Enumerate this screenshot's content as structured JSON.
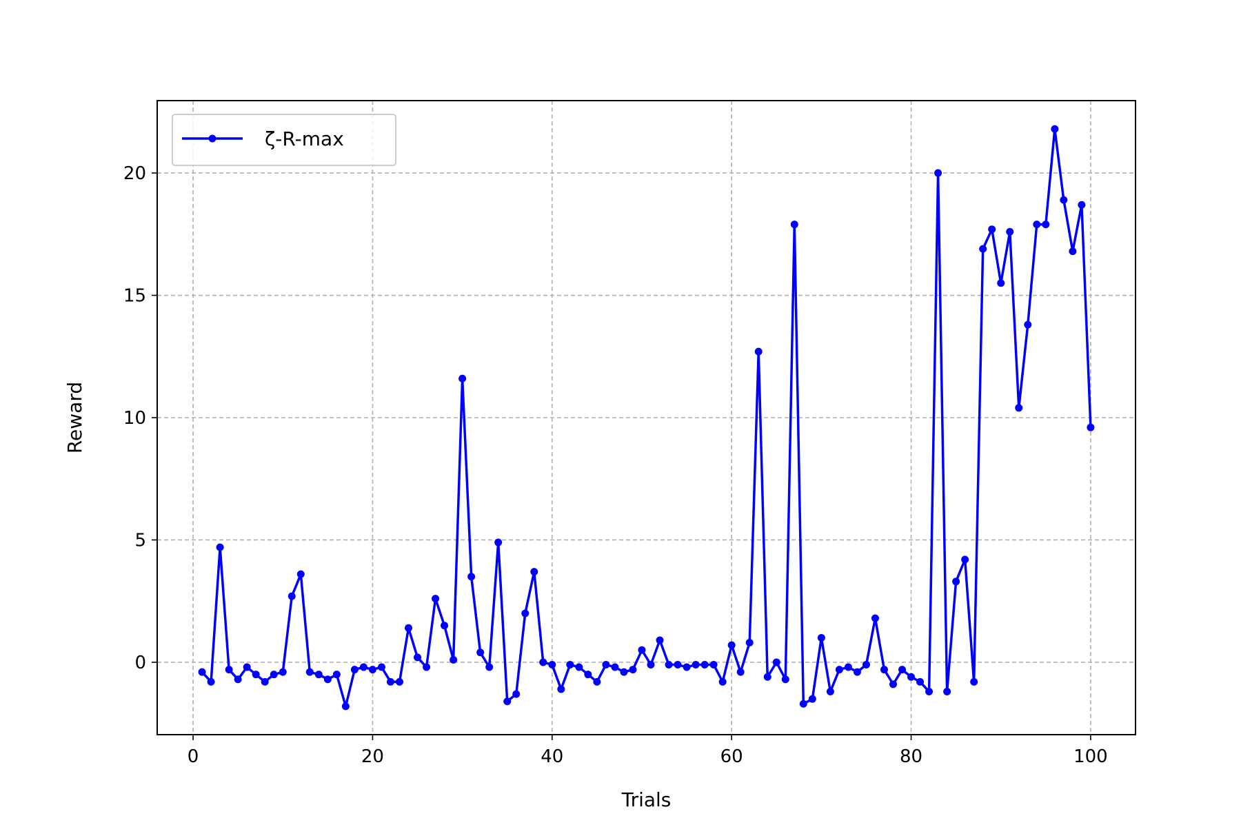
{
  "chart_data": {
    "type": "line",
    "title": "",
    "xlabel": "Trials",
    "ylabel": "Reward",
    "xlim": [
      -4,
      105
    ],
    "ylim": [
      -2.96,
      22.96
    ],
    "xticks": [
      0,
      20,
      40,
      60,
      80,
      100
    ],
    "yticks": [
      0,
      5,
      10,
      15,
      20
    ],
    "grid": true,
    "legend": "upper left",
    "series": [
      {
        "name": "ζ-R-max",
        "color": "#0000ff",
        "marker": "circle",
        "x": [
          1,
          2,
          3,
          4,
          5,
          6,
          7,
          8,
          9,
          10,
          11,
          12,
          13,
          14,
          15,
          16,
          17,
          18,
          19,
          20,
          21,
          22,
          23,
          24,
          25,
          26,
          27,
          28,
          29,
          30,
          31,
          32,
          33,
          34,
          35,
          36,
          37,
          38,
          39,
          40,
          41,
          42,
          43,
          44,
          45,
          46,
          47,
          48,
          49,
          50,
          51,
          52,
          53,
          54,
          55,
          56,
          57,
          58,
          59,
          60,
          61,
          62,
          63,
          64,
          65,
          66,
          67,
          68,
          69,
          70,
          71,
          72,
          73,
          74,
          75,
          76,
          77,
          78,
          79,
          80,
          81,
          82,
          83,
          84,
          85,
          86,
          87,
          88,
          89,
          90,
          91,
          92,
          93,
          94,
          95,
          96,
          97,
          98,
          99,
          100
        ],
        "y": [
          -0.4,
          -0.8,
          4.7,
          -0.3,
          -0.7,
          -0.2,
          -0.5,
          -0.8,
          -0.5,
          -0.4,
          2.7,
          3.6,
          -0.4,
          -0.5,
          -0.7,
          -0.5,
          -1.8,
          -0.3,
          -0.2,
          -0.3,
          -0.2,
          -0.8,
          -0.8,
          1.4,
          0.2,
          -0.2,
          2.6,
          1.5,
          0.1,
          11.6,
          3.5,
          0.4,
          -0.2,
          4.9,
          -1.6,
          -1.3,
          2.0,
          3.7,
          0.0,
          -0.1,
          -1.1,
          -0.1,
          -0.2,
          -0.5,
          -0.8,
          -0.1,
          -0.2,
          -0.4,
          -0.3,
          0.5,
          -0.1,
          0.9,
          -0.1,
          -0.1,
          -0.2,
          -0.1,
          -0.1,
          -0.1,
          -0.8,
          0.7,
          -0.4,
          0.8,
          12.7,
          -0.6,
          0.0,
          -0.7,
          17.9,
          -1.7,
          -1.5,
          1.0,
          -1.2,
          -0.3,
          -0.2,
          -0.4,
          -0.1,
          1.8,
          -0.3,
          -0.9,
          -0.3,
          -0.6,
          -0.8,
          -1.2,
          20.0,
          -1.2,
          3.3,
          4.2,
          -0.8,
          16.9,
          17.7,
          15.5,
          17.6,
          10.4,
          13.8,
          17.9,
          17.9,
          21.8,
          18.9,
          16.8,
          18.7,
          9.6
        ]
      }
    ]
  }
}
